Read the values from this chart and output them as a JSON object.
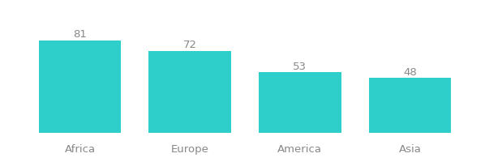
{
  "categories": [
    "Africa",
    "Europe",
    "America",
    "Asia"
  ],
  "values": [
    81,
    72,
    53,
    48
  ],
  "bar_color": "#2ECFCA",
  "value_color": "#888888",
  "label_color": "#888888",
  "background_color": "#ffffff",
  "value_fontsize": 9.5,
  "label_fontsize": 9.5,
  "bar_width": 0.75,
  "ylim": [
    0,
    100
  ],
  "xlim": [
    -0.55,
    3.55
  ]
}
